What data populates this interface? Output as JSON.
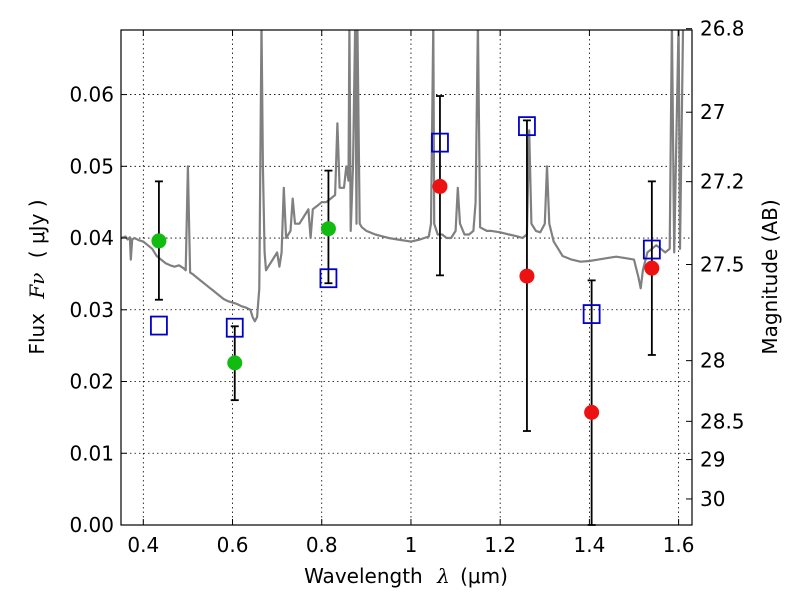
{
  "chart_data": {
    "type": "scatter",
    "xlabel_text": "Wavelength",
    "xlabel_symbol": "λ",
    "xlabel_unit": "(μm)",
    "ylabel_text": "Flux",
    "ylabel_symbol": "Fν",
    "ylabel_unit": "( μJy )",
    "y2label": "Magnitude (AB)",
    "xlim": [
      0.35,
      1.63
    ],
    "ylim": [
      0.0,
      0.069
    ],
    "x_ticks": [
      0.4,
      0.6,
      0.8,
      1.0,
      1.2,
      1.4,
      1.6
    ],
    "x_tick_labels": [
      "0.4",
      "0.6",
      "0.8",
      "1",
      "1.2",
      "1.4",
      "1.6"
    ],
    "y_ticks": [
      0.0,
      0.01,
      0.02,
      0.03,
      0.04,
      0.05,
      0.06
    ],
    "y_tick_labels": [
      "0.00",
      "0.01",
      "0.02",
      "0.03",
      "0.04",
      "0.05",
      "0.06"
    ],
    "y2_ticks": [
      {
        "label": "26.8",
        "flux": 0.06918
      },
      {
        "label": "27",
        "flux": 0.05754
      },
      {
        "label": "27.2",
        "flux": 0.04786
      },
      {
        "label": "27.5",
        "flux": 0.03631
      },
      {
        "label": "28",
        "flux": 0.02291
      },
      {
        "label": "28.5",
        "flux": 0.01445
      },
      {
        "label": "29",
        "flux": 0.00912
      },
      {
        "label": "30",
        "flux": 0.00363
      }
    ],
    "grid": true,
    "series": [
      {
        "kind": "line",
        "color": "#808080",
        "points": [
          [
            0.35,
            0.04
          ],
          [
            0.36,
            0.0402
          ],
          [
            0.365,
            0.0398
          ],
          [
            0.37,
            0.0401
          ],
          [
            0.372,
            0.037
          ],
          [
            0.375,
            0.0398
          ],
          [
            0.38,
            0.04
          ],
          [
            0.39,
            0.0397
          ],
          [
            0.4,
            0.0395
          ],
          [
            0.41,
            0.039
          ],
          [
            0.42,
            0.0385
          ],
          [
            0.43,
            0.0375
          ],
          [
            0.44,
            0.037
          ],
          [
            0.45,
            0.0365
          ],
          [
            0.46,
            0.0362
          ],
          [
            0.47,
            0.036
          ],
          [
            0.48,
            0.0362
          ],
          [
            0.49,
            0.0358
          ],
          [
            0.495,
            0.0355
          ],
          [
            0.5,
            0.05
          ],
          [
            0.505,
            0.0352
          ],
          [
            0.51,
            0.035
          ],
          [
            0.52,
            0.0345
          ],
          [
            0.53,
            0.034
          ],
          [
            0.54,
            0.0335
          ],
          [
            0.55,
            0.033
          ],
          [
            0.56,
            0.0325
          ],
          [
            0.57,
            0.032
          ],
          [
            0.58,
            0.0315
          ],
          [
            0.59,
            0.0312
          ],
          [
            0.6,
            0.031
          ],
          [
            0.61,
            0.0308
          ],
          [
            0.62,
            0.0305
          ],
          [
            0.63,
            0.0303
          ],
          [
            0.64,
            0.03
          ],
          [
            0.645,
            0.029
          ],
          [
            0.65,
            0.0284
          ],
          [
            0.655,
            0.029
          ],
          [
            0.66,
            0.033
          ],
          [
            0.665,
            0.07
          ],
          [
            0.668,
            0.05
          ],
          [
            0.672,
            0.038
          ],
          [
            0.675,
            0.0355
          ],
          [
            0.68,
            0.036
          ],
          [
            0.69,
            0.037
          ],
          [
            0.7,
            0.038
          ],
          [
            0.705,
            0.036
          ],
          [
            0.71,
            0.038
          ],
          [
            0.715,
            0.047
          ],
          [
            0.72,
            0.04
          ],
          [
            0.73,
            0.041
          ],
          [
            0.735,
            0.0455
          ],
          [
            0.74,
            0.042
          ],
          [
            0.75,
            0.042
          ],
          [
            0.76,
            0.043
          ],
          [
            0.77,
            0.044
          ],
          [
            0.775,
            0.04
          ],
          [
            0.78,
            0.044
          ],
          [
            0.79,
            0.0445
          ],
          [
            0.8,
            0.045
          ],
          [
            0.81,
            0.045
          ],
          [
            0.82,
            0.0455
          ],
          [
            0.83,
            0.046
          ],
          [
            0.835,
            0.056
          ],
          [
            0.84,
            0.047
          ],
          [
            0.85,
            0.047
          ],
          [
            0.855,
            0.05
          ],
          [
            0.86,
            0.048
          ],
          [
            0.862,
            0.07
          ],
          [
            0.865,
            0.041
          ],
          [
            0.87,
            0.05
          ],
          [
            0.875,
            0.07
          ],
          [
            0.878,
            0.042
          ],
          [
            0.88,
            0.07
          ],
          [
            0.885,
            0.042
          ],
          [
            0.89,
            0.0415
          ],
          [
            0.9,
            0.041
          ],
          [
            0.92,
            0.0405
          ],
          [
            0.95,
            0.04
          ],
          [
            0.97,
            0.0398
          ],
          [
            1.0,
            0.0395
          ],
          [
            1.02,
            0.0398
          ],
          [
            1.03,
            0.04
          ],
          [
            1.04,
            0.0402
          ],
          [
            1.045,
            0.042
          ],
          [
            1.05,
            0.07
          ],
          [
            1.052,
            0.042
          ],
          [
            1.06,
            0.0405
          ],
          [
            1.07,
            0.0405
          ],
          [
            1.08,
            0.04
          ],
          [
            1.09,
            0.04
          ],
          [
            1.1,
            0.041
          ],
          [
            1.105,
            0.047
          ],
          [
            1.11,
            0.042
          ],
          [
            1.12,
            0.0405
          ],
          [
            1.13,
            0.0405
          ],
          [
            1.14,
            0.041
          ],
          [
            1.145,
            0.045
          ],
          [
            1.15,
            0.07
          ],
          [
            1.155,
            0.0415
          ],
          [
            1.17,
            0.041
          ],
          [
            1.18,
            0.041
          ],
          [
            1.2,
            0.0408
          ],
          [
            1.22,
            0.0405
          ],
          [
            1.24,
            0.0402
          ],
          [
            1.25,
            0.04
          ],
          [
            1.26,
            0.0405
          ],
          [
            1.265,
            0.055
          ],
          [
            1.27,
            0.042
          ],
          [
            1.28,
            0.041
          ],
          [
            1.29,
            0.0408
          ],
          [
            1.3,
            0.042
          ],
          [
            1.305,
            0.05
          ],
          [
            1.31,
            0.042
          ],
          [
            1.32,
            0.0395
          ],
          [
            1.33,
            0.0385
          ],
          [
            1.34,
            0.0375
          ],
          [
            1.36,
            0.037
          ],
          [
            1.38,
            0.0367
          ],
          [
            1.4,
            0.0368
          ],
          [
            1.42,
            0.037
          ],
          [
            1.44,
            0.0372
          ],
          [
            1.46,
            0.0374
          ],
          [
            1.48,
            0.0372
          ],
          [
            1.5,
            0.037
          ],
          [
            1.51,
            0.0345
          ],
          [
            1.515,
            0.033
          ],
          [
            1.52,
            0.0355
          ],
          [
            1.53,
            0.038
          ],
          [
            1.54,
            0.0385
          ],
          [
            1.55,
            0.039
          ],
          [
            1.56,
            0.0385
          ],
          [
            1.57,
            0.038
          ],
          [
            1.58,
            0.0385
          ],
          [
            1.585,
            0.07
          ],
          [
            1.59,
            0.038
          ],
          [
            1.6,
            0.07
          ],
          [
            1.603,
            0.0385
          ],
          [
            1.61,
            0.07
          ],
          [
            1.63,
            0.07
          ]
        ]
      },
      {
        "kind": "points",
        "marker": "open-square",
        "color": "#0000cc",
        "points": [
          [
            0.435,
            0.0278
          ],
          [
            0.605,
            0.0275
          ],
          [
            0.815,
            0.0344
          ],
          [
            1.065,
            0.0533
          ],
          [
            1.26,
            0.0556
          ],
          [
            1.405,
            0.0294
          ],
          [
            1.54,
            0.0384
          ]
        ]
      },
      {
        "kind": "points",
        "marker": "filled-circle",
        "color": "#11bb11",
        "points": [
          [
            0.435,
            0.0396
          ],
          [
            0.605,
            0.0226
          ],
          [
            0.815,
            0.0413
          ]
        ]
      },
      {
        "kind": "points",
        "marker": "filled-circle",
        "color": "#ee1111",
        "points": [
          [
            1.065,
            0.0472
          ],
          [
            1.26,
            0.0347
          ],
          [
            1.405,
            0.0157
          ],
          [
            1.54,
            0.0358
          ]
        ]
      },
      {
        "kind": "errorbars",
        "color": "#000000",
        "bars": [
          {
            "x": 0.435,
            "lo": 0.0314,
            "hi": 0.0479
          },
          {
            "x": 0.605,
            "lo": 0.0174,
            "hi": 0.0277
          },
          {
            "x": 0.815,
            "lo": 0.0337,
            "hi": 0.0494
          },
          {
            "x": 1.065,
            "lo": 0.0348,
            "hi": 0.0598
          },
          {
            "x": 1.26,
            "lo": 0.0131,
            "hi": 0.0564
          },
          {
            "x": 1.405,
            "lo": 0.0,
            "hi": 0.0341
          },
          {
            "x": 1.54,
            "lo": 0.0237,
            "hi": 0.0479
          }
        ]
      }
    ]
  }
}
